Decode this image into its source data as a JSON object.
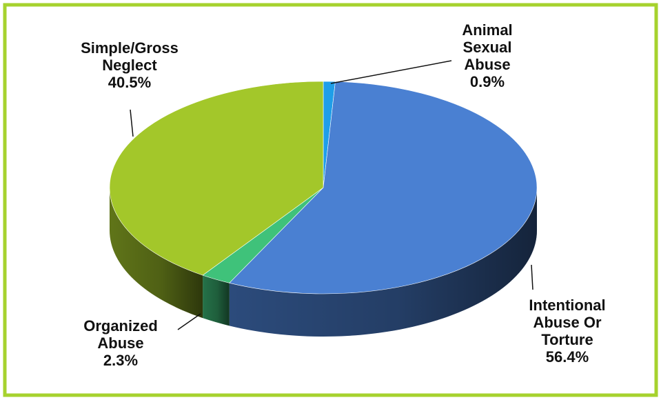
{
  "chart_data": {
    "type": "pie",
    "style": "3d",
    "title": "",
    "slices": [
      {
        "label": [
          "Animal",
          "Sexual",
          "Abuse"
        ],
        "value": 0.9,
        "display": "0.9%",
        "color": "#1f9ee8"
      },
      {
        "label": [
          "Intentional",
          "Abuse Or",
          "Torture"
        ],
        "value": 56.4,
        "display": "56.4%",
        "color": "#4a80d2"
      },
      {
        "label": [
          "Organized",
          "Abuse"
        ],
        "value": 2.3,
        "display": "2.3%",
        "color": "#3fc27a"
      },
      {
        "label": [
          "Simple/Gross",
          "Neglect"
        ],
        "value": 40.5,
        "display": "40.5%",
        "color": "#a3c72a"
      }
    ],
    "border_color": "#a6d22e"
  }
}
